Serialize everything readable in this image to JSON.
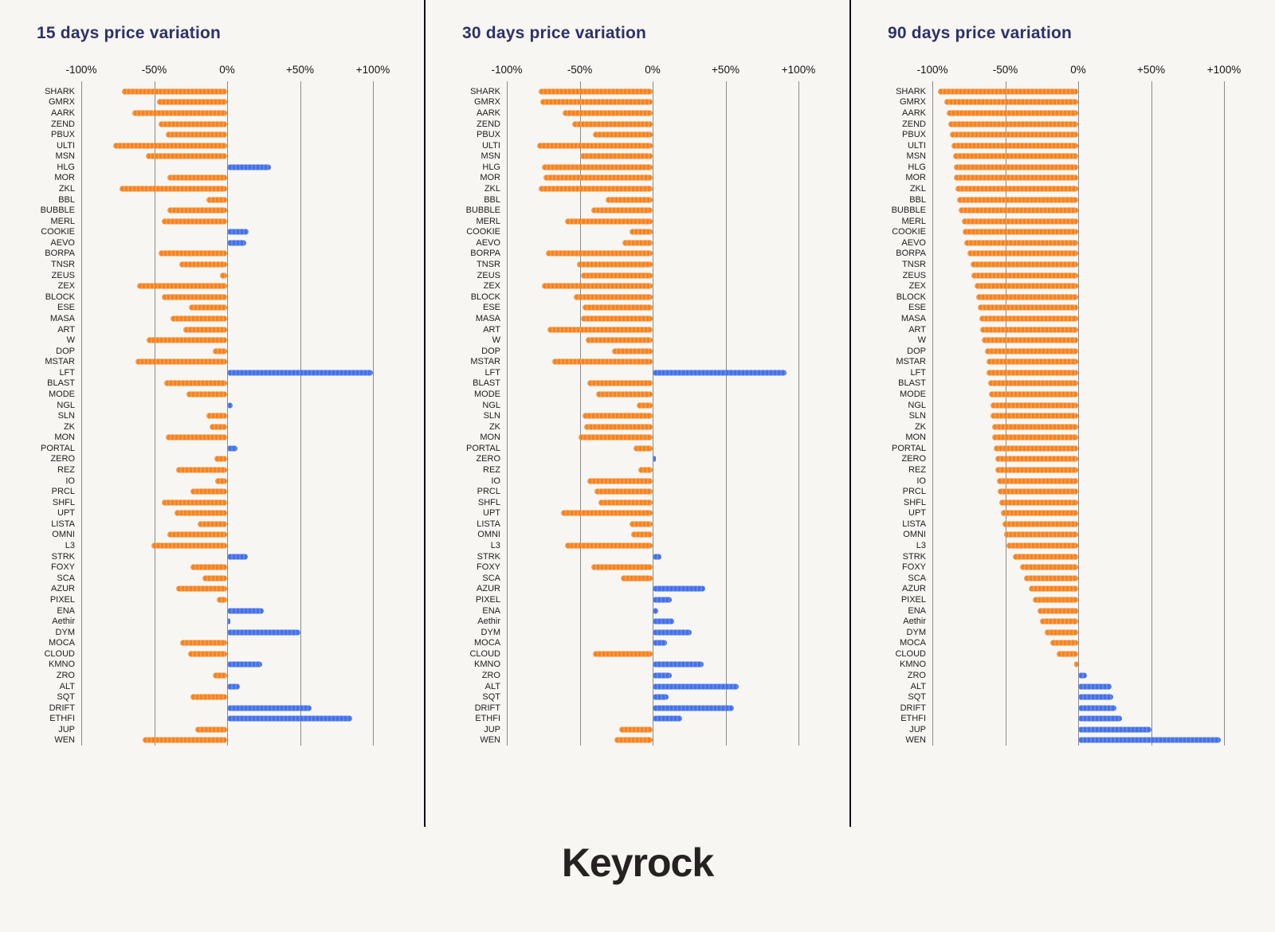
{
  "page": {
    "logo_text": "Keyrock",
    "background": "#f7f6f3"
  },
  "colors": {
    "negative_bar": "#f5831f",
    "positive_bar": "#4571e6",
    "title": "#2e3168",
    "axis_text": "#141414",
    "gridline": "#8b8b8b",
    "divider": "#101014",
    "label_text": "#1c1c1c",
    "logo": "#262221"
  },
  "chart_data": [
    {
      "type": "bar",
      "orientation": "horizontal",
      "title": "15 days price variation",
      "unit": "%",
      "xlim": [
        -100,
        100
      ],
      "x_ticks": [
        "-100%",
        "-50%",
        "0%",
        "+50%",
        "+100%"
      ],
      "grid": true,
      "categories": [
        "SHARK",
        "GMRX",
        "AARK",
        "ZEND",
        "PBUX",
        "ULTI",
        "MSN",
        "HLG",
        "MOR",
        "ZKL",
        "BBL",
        "BUBBLE",
        "MERL",
        "COOKIE",
        "AEVO",
        "BORPA",
        "TNSR",
        "ZEUS",
        "ZEX",
        "BLOCK",
        "ESE",
        "MASA",
        "ART",
        "W",
        "DOP",
        "MSTAR",
        "LFT",
        "BLAST",
        "MODE",
        "NGL",
        "SLN",
        "ZK",
        "MON",
        "PORTAL",
        "ZERO",
        "REZ",
        "IO",
        "PRCL",
        "SHFL",
        "UPT",
        "LISTA",
        "OMNI",
        "L3",
        "STRK",
        "FOXY",
        "SCA",
        "AZUR",
        "PIXEL",
        "ENA",
        "Aethir",
        "DYM",
        "MOCA",
        "CLOUD",
        "KMNO",
        "ZRO",
        "ALT",
        "SQT",
        "DRIFT",
        "ETHFI",
        "JUP",
        "WEN"
      ],
      "values": [
        -72,
        -48,
        -65,
        -47,
        -42,
        -78,
        -56,
        30,
        -41,
        -74,
        -14,
        -41,
        -45,
        15,
        13,
        -47,
        -33,
        -5,
        -62,
        -45,
        -26,
        -39,
        -30,
        -55,
        -10,
        -63,
        100,
        -43,
        -28,
        4,
        -14,
        -12,
        -42,
        7,
        -9,
        -35,
        -8,
        -25,
        -45,
        -36,
        -20,
        -41,
        -52,
        14,
        -25,
        -17,
        -35,
        -7,
        25,
        2,
        50,
        -32,
        -27,
        24,
        -10,
        9,
        -25,
        58,
        86,
        -22,
        -58
      ]
    },
    {
      "type": "bar",
      "orientation": "horizontal",
      "title": "30 days price variation",
      "unit": "%",
      "xlim": [
        -100,
        100
      ],
      "x_ticks": [
        "-100%",
        "-50%",
        "0%",
        "+50%",
        "+100%"
      ],
      "grid": true,
      "categories": [
        "SHARK",
        "GMRX",
        "AARK",
        "ZEND",
        "PBUX",
        "ULTI",
        "MSN",
        "HLG",
        "MOR",
        "ZKL",
        "BBL",
        "BUBBLE",
        "MERL",
        "COOKIE",
        "AEVO",
        "BORPA",
        "TNSR",
        "ZEUS",
        "ZEX",
        "BLOCK",
        "ESE",
        "MASA",
        "ART",
        "W",
        "DOP",
        "MSTAR",
        "LFT",
        "BLAST",
        "MODE",
        "NGL",
        "SLN",
        "ZK",
        "MON",
        "PORTAL",
        "ZERO",
        "REZ",
        "IO",
        "PRCL",
        "SHFL",
        "UPT",
        "LISTA",
        "OMNI",
        "L3",
        "STRK",
        "FOXY",
        "SCA",
        "AZUR",
        "PIXEL",
        "ENA",
        "Aethir",
        "DYM",
        "MOCA",
        "CLOUD",
        "KMNO",
        "ZRO",
        "ALT",
        "SQT",
        "DRIFT",
        "ETHFI",
        "JUP",
        "WEN"
      ],
      "values": [
        -78,
        -77,
        -62,
        -55,
        -41,
        -79,
        -50,
        -76,
        -75,
        -78,
        -32,
        -42,
        -60,
        -16,
        -21,
        -73,
        -52,
        -49,
        -76,
        -54,
        -48,
        -49,
        -72,
        -46,
        -28,
        -69,
        92,
        -45,
        -39,
        -11,
        -48,
        -47,
        -51,
        -13,
        2,
        -10,
        -45,
        -40,
        -37,
        -63,
        -16,
        -15,
        -60,
        6,
        -42,
        -22,
        36,
        13,
        4,
        15,
        27,
        10,
        -41,
        35,
        13,
        59,
        11,
        56,
        20,
        -23,
        -26
      ]
    },
    {
      "type": "bar",
      "orientation": "horizontal",
      "title": "90 days price variation",
      "unit": "%",
      "xlim": [
        -100,
        100
      ],
      "x_ticks": [
        "-100%",
        "-50%",
        "0%",
        "+50%",
        "+100%"
      ],
      "grid": true,
      "categories": [
        "SHARK",
        "GMRX",
        "AARK",
        "ZEND",
        "PBUX",
        "ULTI",
        "MSN",
        "HLG",
        "MOR",
        "ZKL",
        "BBL",
        "BUBBLE",
        "MERL",
        "COOKIE",
        "AEVO",
        "BORPA",
        "TNSR",
        "ZEUS",
        "ZEX",
        "BLOCK",
        "ESE",
        "MASA",
        "ART",
        "W",
        "DOP",
        "MSTAR",
        "LFT",
        "BLAST",
        "MODE",
        "NGL",
        "SLN",
        "ZK",
        "MON",
        "PORTAL",
        "ZERO",
        "REZ",
        "IO",
        "PRCL",
        "SHFL",
        "UPT",
        "LISTA",
        "OMNI",
        "L3",
        "STRK",
        "FOXY",
        "SCA",
        "AZUR",
        "PIXEL",
        "ENA",
        "Aethir",
        "DYM",
        "MOCA",
        "CLOUD",
        "KMNO",
        "ZRO",
        "ALT",
        "SQT",
        "DRIFT",
        "ETHFI",
        "JUP",
        "WEN"
      ],
      "values": [
        -96,
        -92,
        -90,
        -89,
        -88,
        -87,
        -86,
        -85,
        -85,
        -84,
        -83,
        -82,
        -80,
        -79,
        -78,
        -76,
        -74,
        -73,
        -71,
        -70,
        -69,
        -68,
        -67,
        -66,
        -64,
        -63,
        -63,
        -62,
        -61,
        -60,
        -60,
        -59,
        -59,
        -58,
        -57,
        -57,
        -56,
        -55,
        -54,
        -53,
        -52,
        -51,
        -49,
        -45,
        -40,
        -37,
        -34,
        -31,
        -28,
        -26,
        -23,
        -19,
        -15,
        -3,
        6,
        23,
        24,
        26,
        30,
        50,
        98
      ]
    }
  ]
}
